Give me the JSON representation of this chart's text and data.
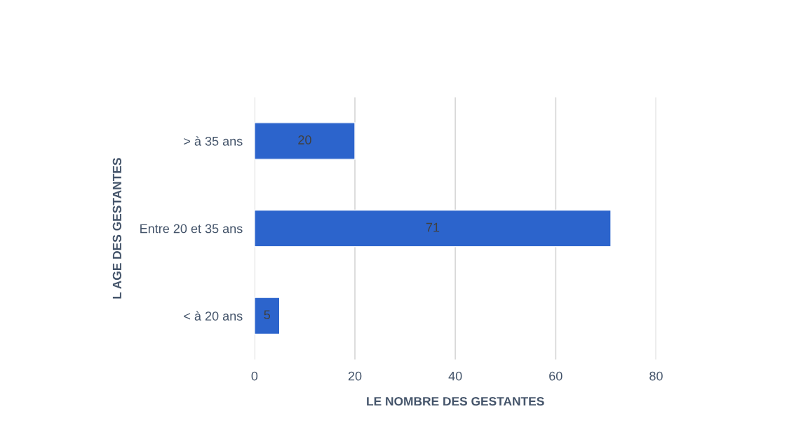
{
  "chart_data": {
    "type": "bar",
    "orientation": "horizontal",
    "categories": [
      "> à 35 ans",
      "Entre 20 et 35 ans",
      "< à 20 ans"
    ],
    "values": [
      20,
      71,
      5
    ],
    "color": "#2c64cc",
    "xlabel": "LE NOMBRE DES GESTANTES",
    "ylabel": "L AGE DES GESTANTES",
    "xlim": [
      0,
      80
    ],
    "xticks": [
      0,
      20,
      40,
      60,
      80
    ],
    "grid": "x",
    "data_labels": true
  }
}
